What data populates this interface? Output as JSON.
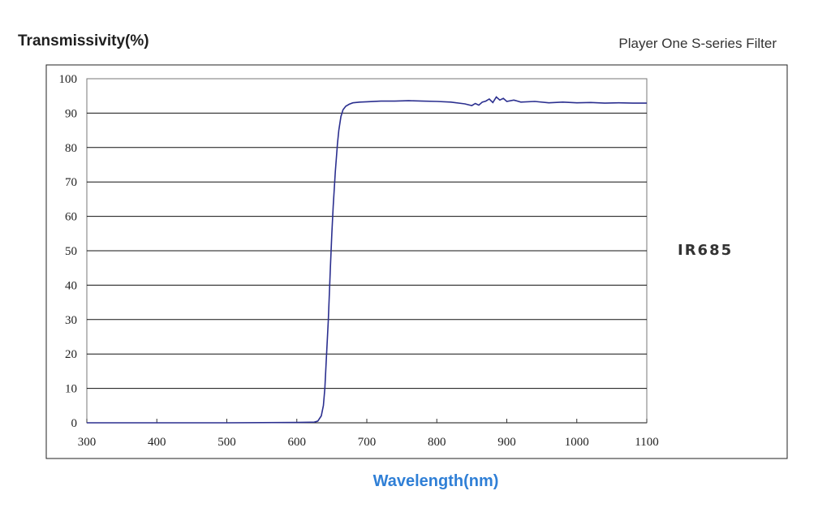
{
  "header": {
    "ylabel": "Transmissivity(%)",
    "subtitle": "Player One S-series Filter"
  },
  "badge": "IR685",
  "chart_data": {
    "type": "line",
    "title": "",
    "xlabel": "Wavelength(nm)",
    "ylabel": "Transmissivity(%)",
    "xlim": [
      300,
      1100
    ],
    "ylim": [
      0,
      100
    ],
    "xticks": [
      "300",
      "400",
      "500",
      "600",
      "700",
      "800",
      "900",
      "1000",
      "1100"
    ],
    "yticks": [
      "0",
      "10",
      "20",
      "30",
      "40",
      "50",
      "60",
      "70",
      "80",
      "90",
      "100"
    ],
    "grid": "horizontal",
    "line_color": "#2b2f8f",
    "series": [
      {
        "x": [
          300,
          400,
          500,
          600,
          625,
          630,
          635,
          638,
          640,
          642,
          645,
          648,
          650,
          652,
          655,
          658,
          660,
          663,
          666,
          670,
          675,
          680,
          690,
          700,
          720,
          740,
          760,
          780,
          800,
          820,
          840,
          850,
          855,
          860,
          865,
          870,
          875,
          880,
          885,
          890,
          895,
          900,
          910,
          920,
          940,
          960,
          980,
          1000,
          1020,
          1040,
          1060,
          1080,
          1100
        ],
        "y": [
          0,
          0,
          0,
          0.1,
          0.2,
          0.5,
          2,
          5,
          10,
          18,
          30,
          45,
          55,
          63,
          73,
          81,
          85,
          89,
          91,
          92,
          92.6,
          93,
          93.2,
          93.3,
          93.5,
          93.5,
          93.6,
          93.5,
          93.4,
          93.2,
          92.7,
          92.2,
          92.8,
          92.3,
          93.2,
          93.5,
          94.1,
          93.1,
          94.7,
          93.8,
          94.3,
          93.4,
          93.8,
          93.2,
          93.4,
          93.0,
          93.2,
          93.0,
          93.1,
          92.9,
          93.0,
          92.9,
          92.9
        ]
      }
    ]
  }
}
